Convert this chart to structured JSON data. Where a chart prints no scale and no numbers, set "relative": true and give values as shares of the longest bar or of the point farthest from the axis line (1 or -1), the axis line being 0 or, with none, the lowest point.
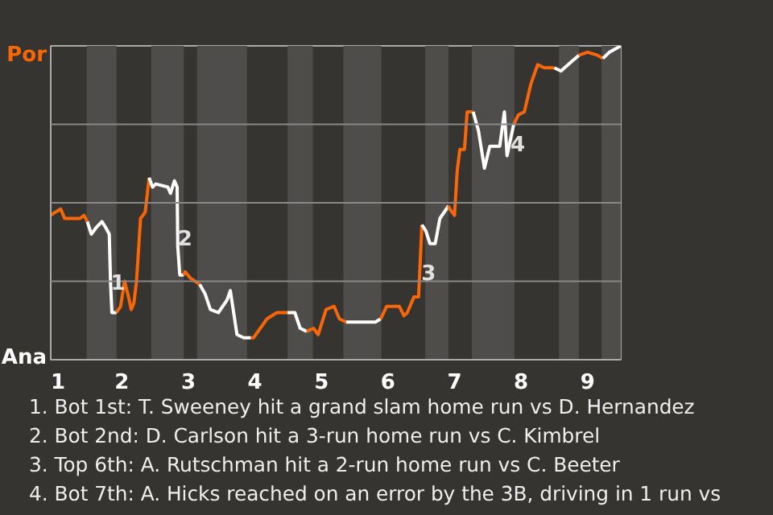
{
  "chart_data": {
    "type": "line",
    "relative": true,
    "xlim": [
      0.93,
      9.5
    ],
    "xticks": [
      1,
      2,
      3,
      4,
      5,
      6,
      7,
      8,
      9
    ],
    "ref_lines": [
      {
        "axis": "y",
        "value": 0.25,
        "color": "#888888"
      },
      {
        "axis": "y",
        "value": 0.5,
        "color": "#888888"
      },
      {
        "axis": "y",
        "value": 0.75,
        "color": "#888888"
      }
    ],
    "marker": "none",
    "line_style": "solid",
    "bands": [
      {
        "axis": "x",
        "from": 1.47,
        "to": 1.92,
        "color": "#4f4d4b"
      },
      {
        "axis": "x",
        "from": 2.44,
        "to": 2.93,
        "color": "#4f4d4b"
      },
      {
        "axis": "x",
        "from": 3.13,
        "to": 3.88,
        "color": "#4f4d4b"
      },
      {
        "axis": "x",
        "from": 4.49,
        "to": 4.87,
        "color": "#4f4d4b"
      },
      {
        "axis": "x",
        "from": 5.33,
        "to": 5.9,
        "color": "#4f4d4b"
      },
      {
        "axis": "x",
        "from": 6.56,
        "to": 6.91,
        "color": "#4f4d4b"
      },
      {
        "axis": "x",
        "from": 7.26,
        "to": 7.9,
        "color": "#4f4d4b"
      },
      {
        "axis": "x",
        "from": 8.57,
        "to": 8.87,
        "color": "#4f4d4b"
      },
      {
        "axis": "x",
        "from": 9.21,
        "to": 9.5,
        "color": "#4f4d4b"
      }
    ],
    "series": [
      {
        "color": "#ff6600",
        "x": [
          0.93,
          1.0,
          1.08,
          1.14,
          1.37,
          1.43,
          1.48
        ],
        "values": [
          0.46,
          0.47,
          0.48,
          0.45,
          0.45,
          0.46,
          0.44
        ]
      },
      {
        "color": "#ffffff",
        "x": [
          1.48,
          1.54,
          1.61,
          1.7,
          1.76,
          1.81,
          1.83,
          1.85,
          1.92
        ],
        "values": [
          0.44,
          0.4,
          0.42,
          0.44,
          0.42,
          0.4,
          0.24,
          0.15,
          0.15
        ]
      },
      {
        "color": "#ff6601",
        "x": [
          1.92,
          1.98,
          2.04,
          2.1,
          2.14,
          2.18,
          2.22,
          2.28,
          2.35,
          2.41
        ],
        "values": [
          0.15,
          0.17,
          0.25,
          0.2,
          0.16,
          0.18,
          0.25,
          0.45,
          0.47,
          0.58
        ]
      },
      {
        "color": "#ffffff",
        "x": [
          2.41,
          2.46,
          2.51,
          2.69,
          2.73,
          2.79,
          2.83,
          2.84,
          2.87,
          2.93
        ],
        "values": [
          0.58,
          0.55,
          0.56,
          0.55,
          0.53,
          0.57,
          0.55,
          0.36,
          0.27,
          0.27
        ]
      },
      {
        "color": "#ff6602",
        "x": [
          2.93,
          2.95,
          3.03,
          3.17
        ],
        "values": [
          0.27,
          0.28,
          0.26,
          0.24
        ]
      },
      {
        "color": "#ffffff",
        "x": [
          3.17,
          3.25,
          3.33,
          3.45,
          3.58,
          3.63,
          3.68,
          3.73,
          3.83,
          3.94
        ],
        "values": [
          0.24,
          0.21,
          0.16,
          0.15,
          0.19,
          0.22,
          0.15,
          0.08,
          0.07,
          0.07
        ]
      },
      {
        "color": "#ff6603",
        "x": [
          3.94,
          3.98,
          4.08,
          4.18,
          4.33,
          4.49
        ],
        "values": [
          0.07,
          0.07,
          0.1,
          0.13,
          0.15,
          0.15
        ]
      },
      {
        "color": "#ffffff",
        "x": [
          4.49,
          4.6,
          4.68,
          4.78
        ],
        "values": [
          0.15,
          0.15,
          0.1,
          0.09
        ]
      },
      {
        "color": "#ff6604",
        "x": [
          4.78,
          4.88,
          4.95,
          5.07,
          5.19,
          5.27,
          5.37
        ],
        "values": [
          0.09,
          0.1,
          0.08,
          0.16,
          0.17,
          0.13,
          0.12
        ]
      },
      {
        "color": "#ffffff",
        "x": [
          5.37,
          5.46,
          5.72,
          5.81,
          5.89
        ],
        "values": [
          0.12,
          0.12,
          0.12,
          0.12,
          0.13
        ]
      },
      {
        "color": "#ff6605",
        "x": [
          5.89,
          5.98,
          6.17,
          6.24,
          6.29,
          6.39,
          6.46,
          6.51
        ],
        "values": [
          0.13,
          0.17,
          0.17,
          0.14,
          0.15,
          0.2,
          0.2,
          0.43
        ]
      },
      {
        "color": "#ffffff",
        "x": [
          6.51,
          6.57,
          6.63,
          6.71,
          6.78,
          6.91
        ],
        "values": [
          0.43,
          0.41,
          0.37,
          0.37,
          0.45,
          0.49
        ]
      },
      {
        "color": "#ff6606",
        "x": [
          6.91,
          6.93,
          7.0,
          7.04,
          7.08,
          7.15,
          7.19,
          7.28
        ],
        "values": [
          0.49,
          0.48,
          0.46,
          0.6,
          0.67,
          0.67,
          0.79,
          0.79
        ]
      },
      {
        "color": "#ffffff",
        "x": [
          7.28,
          7.36,
          7.45,
          7.53,
          7.68,
          7.75,
          7.79,
          7.83,
          7.88,
          7.89
        ],
        "values": [
          0.79,
          0.73,
          0.61,
          0.68,
          0.68,
          0.79,
          0.65,
          0.69,
          0.74,
          0.75
        ]
      },
      {
        "color": "#ff6607",
        "x": [
          7.89,
          7.96,
          8.05,
          8.15,
          8.25,
          8.35,
          8.5
        ],
        "values": [
          0.75,
          0.78,
          0.79,
          0.88,
          0.94,
          0.93,
          0.93
        ]
      },
      {
        "color": "#ffffff",
        "x": [
          8.5,
          8.6,
          8.76,
          8.87
        ],
        "values": [
          0.93,
          0.92,
          0.95,
          0.97
        ]
      },
      {
        "color": "#ff6608",
        "x": [
          8.87,
          9.0,
          9.15,
          9.23
        ],
        "values": [
          0.97,
          0.98,
          0.97,
          0.96
        ]
      },
      {
        "color": "#ffffff",
        "x": [
          9.23,
          9.33,
          9.5
        ],
        "values": [
          0.96,
          0.98,
          1.0
        ]
      }
    ],
    "annotations": [
      "Por",
      "Ana",
      {
        "text": "1",
        "x": 1.94,
        "y": 0.25
      },
      {
        "text": "2",
        "x": 2.95,
        "y": 0.39
      },
      {
        "text": "3",
        "x": 6.61,
        "y": 0.28
      },
      {
        "text": "4",
        "x": 7.95,
        "y": 0.69
      },
      "1. Bot 1st: T. Sweeney hit a grand slam home run vs D. Hernandez",
      "2. Bot 2nd: D. Carlson hit a 3-run home run vs C. Kimbrel",
      "3. Top 6th: A. Rutschman hit a 2-run home run vs C. Beeter",
      "4. Bot 7th: A. Hicks reached on an error by the 3B, driving in 1 run vs"
    ]
  }
}
